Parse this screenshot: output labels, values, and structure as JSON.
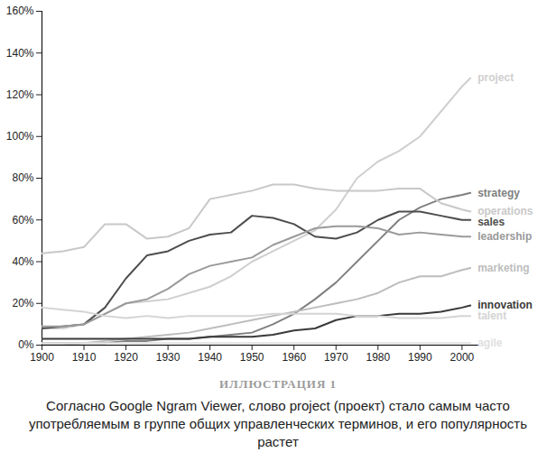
{
  "chart_data": {
    "type": "line",
    "title": "ИЛЛЮСТРАЦИЯ 1",
    "caption": "Согласно Google Ngram Viewer, слово project (проект) стало самым часто употребляемым в группе общих управленческих терминов, и его популярность растет",
    "x": [
      1900,
      1905,
      1910,
      1915,
      1920,
      1925,
      1930,
      1935,
      1940,
      1945,
      1950,
      1955,
      1960,
      1965,
      1970,
      1975,
      1980,
      1985,
      1990,
      1995,
      2000,
      2002
    ],
    "series": [
      {
        "name": "project",
        "color": "#cfcfcf",
        "values": [
          8,
          8,
          10,
          15,
          20,
          21,
          22,
          25,
          28,
          33,
          40,
          45,
          50,
          55,
          65,
          80,
          88,
          93,
          100,
          112,
          124,
          128
        ]
      },
      {
        "name": "strategy",
        "color": "#808080",
        "values": [
          1,
          1,
          1,
          1,
          2,
          2,
          3,
          3,
          4,
          5,
          6,
          10,
          15,
          22,
          30,
          40,
          50,
          60,
          66,
          70,
          72,
          73
        ]
      },
      {
        "name": "operations",
        "color": "#c8c8c8",
        "values": [
          44,
          45,
          47,
          58,
          58,
          51,
          52,
          56,
          70,
          72,
          74,
          77,
          77,
          75,
          74,
          74,
          74,
          75,
          75,
          68,
          65,
          64
        ]
      },
      {
        "name": "sales",
        "color": "#4d4d4d",
        "values": [
          8,
          9,
          10,
          18,
          32,
          43,
          45,
          50,
          53,
          54,
          62,
          61,
          58,
          52,
          51,
          54,
          60,
          64,
          64,
          62,
          60,
          60
        ]
      },
      {
        "name": "leadership",
        "color": "#9a9a9a",
        "values": [
          9,
          9,
          10,
          15,
          20,
          22,
          27,
          34,
          38,
          40,
          42,
          48,
          52,
          56,
          57,
          57,
          56,
          53,
          54,
          53,
          52,
          52
        ]
      },
      {
        "name": "marketing",
        "color": "#bdbdbd",
        "values": [
          0,
          0,
          1,
          2,
          3,
          4,
          5,
          6,
          8,
          10,
          12,
          14,
          16,
          18,
          20,
          22,
          25,
          30,
          33,
          33,
          36,
          37
        ]
      },
      {
        "name": "innovation",
        "color": "#3a3a3a",
        "values": [
          3,
          3,
          3,
          3,
          3,
          3,
          3,
          3,
          4,
          4,
          4,
          5,
          7,
          8,
          12,
          14,
          14,
          15,
          15,
          16,
          18,
          19
        ]
      },
      {
        "name": "talent",
        "color": "#d4d4d4",
        "values": [
          18,
          17,
          16,
          14,
          13,
          14,
          13,
          14,
          14,
          14,
          14,
          15,
          15,
          15,
          15,
          14,
          14,
          13,
          13,
          13,
          14,
          14
        ]
      },
      {
        "name": "agile",
        "color": "#e0e0e0",
        "values": [
          1,
          1,
          1,
          1,
          1,
          1,
          1,
          1,
          1,
          1,
          1,
          1,
          1,
          1,
          1,
          1,
          1,
          1,
          1,
          1,
          1,
          1
        ]
      }
    ],
    "xlim": [
      1900,
      2004
    ],
    "xticks": [
      1900,
      1910,
      1920,
      1930,
      1940,
      1950,
      1960,
      1970,
      1980,
      1990,
      2000
    ],
    "ylim": [
      0,
      160
    ],
    "yticks": [
      {
        "value": 0,
        "label": "0%"
      },
      {
        "value": 20,
        "label": "20%"
      },
      {
        "value": 40,
        "label": "40%"
      },
      {
        "value": 60,
        "label": "60%"
      },
      {
        "value": 80,
        "label": "80%"
      },
      {
        "value": 100,
        "label": "100%"
      },
      {
        "value": 120,
        "label": "120%"
      },
      {
        "value": 140,
        "label": "140%"
      },
      {
        "value": 160,
        "label": "160%"
      }
    ],
    "grid": false,
    "legend": "right"
  }
}
